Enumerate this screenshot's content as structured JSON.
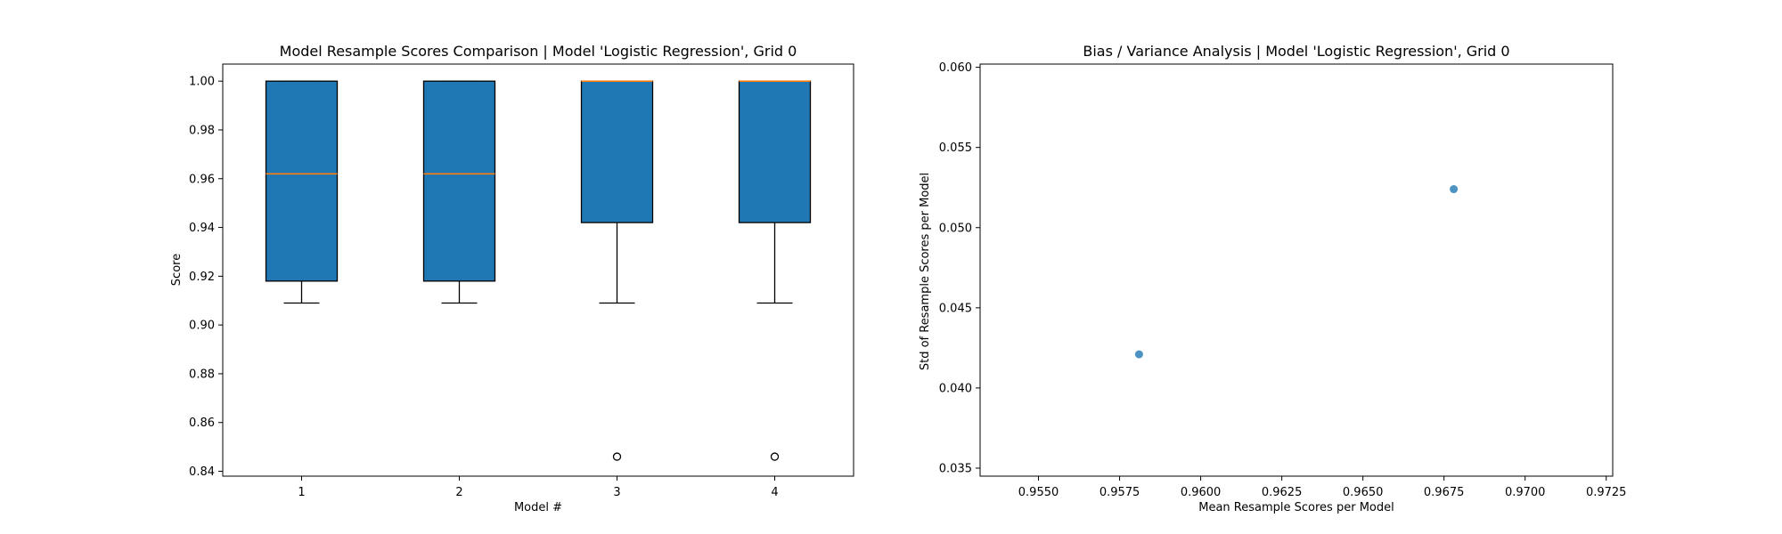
{
  "chart_data": [
    {
      "type": "box",
      "title": "Model Resample Scores Comparison | Model 'Logistic Regression', Grid 0",
      "xlabel": "Model #",
      "ylabel": "Score",
      "ylim": [
        0.838,
        1.007
      ],
      "yticks": [
        "0.84",
        "0.86",
        "0.88",
        "0.90",
        "0.92",
        "0.94",
        "0.96",
        "0.98",
        "1.00"
      ],
      "categories": [
        "1",
        "2",
        "3",
        "4"
      ],
      "boxes": [
        {
          "whislo": 0.909,
          "q1": 0.918,
          "med": 0.962,
          "q3": 1.0,
          "whishi": 1.0,
          "fliers": []
        },
        {
          "whislo": 0.909,
          "q1": 0.918,
          "med": 0.962,
          "q3": 1.0,
          "whishi": 1.0,
          "fliers": []
        },
        {
          "whislo": 0.909,
          "q1": 0.942,
          "med": 1.0,
          "q3": 1.0,
          "whishi": 1.0,
          "fliers": [
            0.846
          ]
        },
        {
          "whislo": 0.909,
          "q1": 0.942,
          "med": 1.0,
          "q3": 1.0,
          "whishi": 1.0,
          "fliers": [
            0.846
          ]
        }
      ],
      "colors": {
        "box": "#1f77b4",
        "median": "#ff7f0e",
        "edge": "#000000"
      }
    },
    {
      "type": "scatter",
      "title": "Bias / Variance Analysis | Model 'Logistic Regression', Grid 0",
      "xlabel": "Mean Resample Scores per Model",
      "ylabel": "Std of Resample Scores per Model",
      "xlim": [
        0.9532,
        0.9727
      ],
      "ylim": [
        0.0345,
        0.0602
      ],
      "xticks": [
        "0.9550",
        "0.9575",
        "0.9600",
        "0.9625",
        "0.9650",
        "0.9675",
        "0.9700",
        "0.9725"
      ],
      "yticks": [
        "0.035",
        "0.040",
        "0.045",
        "0.050",
        "0.055",
        "0.060"
      ],
      "points": [
        {
          "x": 0.9581,
          "y": 0.0421
        },
        {
          "x": 0.9678,
          "y": 0.0524
        }
      ],
      "colors": {
        "point": "#1f77b4"
      }
    }
  ]
}
